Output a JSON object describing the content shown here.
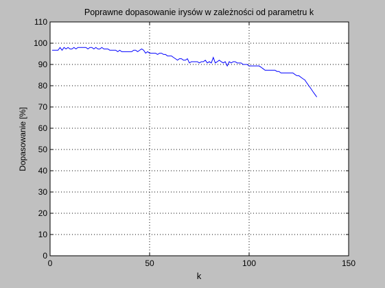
{
  "chart_data": {
    "type": "line",
    "title": "Poprawne dopasowanie irysów w zależności od parametru k",
    "xlabel": "k",
    "ylabel": "Dopasowanie [%]",
    "xlim": [
      0,
      150
    ],
    "ylim": [
      0,
      110
    ],
    "xticks": [
      0,
      50,
      100,
      150
    ],
    "yticks": [
      0,
      10,
      20,
      30,
      40,
      50,
      60,
      70,
      80,
      90,
      100,
      110
    ],
    "xtick_labels": [
      "0",
      "50",
      "100",
      "150"
    ],
    "ytick_labels": [
      "0",
      "10",
      "20",
      "30",
      "40",
      "50",
      "60",
      "70",
      "80",
      "90",
      "100",
      "110"
    ],
    "grid": true,
    "line_color": "#0000ff",
    "series": [
      {
        "x": [
          1,
          2,
          3,
          4,
          5,
          6,
          7,
          8,
          9,
          10,
          11,
          12,
          13,
          14,
          15,
          16,
          17,
          18,
          19,
          20,
          21,
          22,
          23,
          24,
          25,
          26,
          27,
          28,
          29,
          30,
          31,
          32,
          33,
          34,
          35,
          36,
          37,
          38,
          39,
          40,
          41,
          42,
          43,
          44,
          45,
          46,
          47,
          48,
          49,
          50,
          51,
          52,
          53,
          54,
          55,
          56,
          57,
          58,
          59,
          60,
          61,
          62,
          63,
          64,
          65,
          66,
          67,
          68,
          69,
          70,
          71,
          72,
          73,
          74,
          75,
          76,
          77,
          78,
          79,
          80,
          81,
          82,
          83,
          84,
          85,
          86,
          87,
          88,
          89,
          90,
          91,
          92,
          93,
          94,
          95,
          96,
          97,
          98,
          99,
          100,
          101,
          102,
          103,
          104,
          105,
          106,
          107,
          108,
          109,
          110,
          111,
          112,
          113,
          114,
          115,
          116,
          117,
          118,
          119,
          120,
          121,
          122,
          123,
          124,
          125,
          126,
          127,
          128,
          129,
          130,
          131,
          132,
          133,
          134
        ],
        "values": [
          96.7,
          96.7,
          96.7,
          96.7,
          98.0,
          96.7,
          98.0,
          97.3,
          98.0,
          97.3,
          97.3,
          98.0,
          97.3,
          98.0,
          98.0,
          98.0,
          98.0,
          98.0,
          97.3,
          98.0,
          98.0,
          97.3,
          98.0,
          97.3,
          97.3,
          98.0,
          97.3,
          97.3,
          97.3,
          96.7,
          96.7,
          96.7,
          96.7,
          96.0,
          96.7,
          96.0,
          96.0,
          96.0,
          96.0,
          96.0,
          96.0,
          96.7,
          96.7,
          96.0,
          96.7,
          97.3,
          96.7,
          95.3,
          96.0,
          95.3,
          95.3,
          95.3,
          95.3,
          94.7,
          95.3,
          95.3,
          94.7,
          94.7,
          94.0,
          94.0,
          94.0,
          93.3,
          92.7,
          92.0,
          92.7,
          92.7,
          92.0,
          92.0,
          92.7,
          90.7,
          91.3,
          91.3,
          91.3,
          91.3,
          90.7,
          91.3,
          91.3,
          92.0,
          90.7,
          91.3,
          90.7,
          93.3,
          90.7,
          91.3,
          92.0,
          91.3,
          90.7,
          91.3,
          89.3,
          91.3,
          90.7,
          91.3,
          91.3,
          90.7,
          90.7,
          90.7,
          90.0,
          90.0,
          90.0,
          89.3,
          89.3,
          89.3,
          89.3,
          89.3,
          89.3,
          88.7,
          88.0,
          87.3,
          87.3,
          87.3,
          87.3,
          87.3,
          87.3,
          86.7,
          86.7,
          86.0,
          86.0,
          86.0,
          86.0,
          86.0,
          86.0,
          86.0,
          85.3,
          84.7,
          84.7,
          84.0,
          83.3,
          82.7,
          81.3,
          80.0,
          78.7,
          77.3,
          76.0,
          74.7
        ]
      }
    ]
  }
}
